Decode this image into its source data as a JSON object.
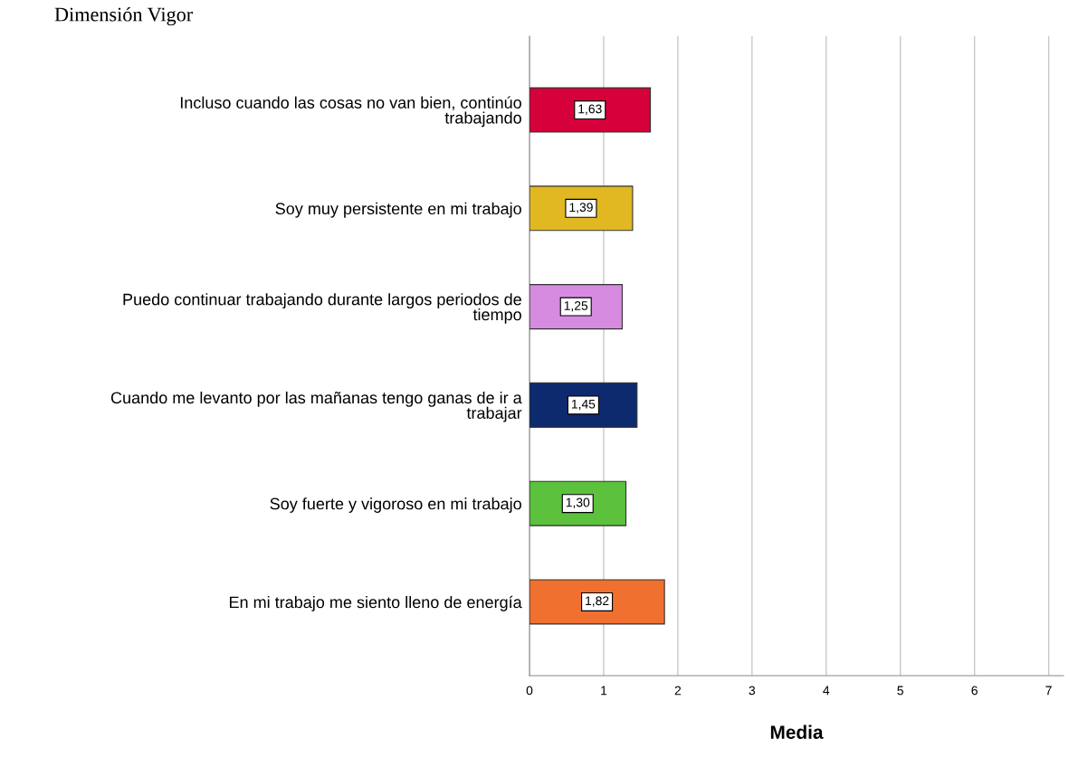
{
  "chart_data": {
    "type": "bar",
    "orientation": "horizontal",
    "title": "Dimensión Vigor",
    "xlabel": "Media",
    "categories": [
      "Incluso cuando las cosas no van bien, continúo trabajando",
      "Soy muy persistente en mi trabajo",
      "Puedo continuar trabajando durante largos periodos de tiempo",
      "Cuando me levanto por las mañanas tengo ganas de ir a trabajar",
      "Soy fuerte y vigoroso en mi trabajo",
      "En mi trabajo me siento lleno de energía"
    ],
    "values": [
      1.63,
      1.39,
      1.25,
      1.45,
      1.3,
      1.82
    ],
    "value_labels": [
      "1,63",
      "1,39",
      "1,25",
      "1,45",
      "1,30",
      "1,82"
    ],
    "colors": [
      "#d6003a",
      "#e1b822",
      "#d68be0",
      "#0e2a6e",
      "#5cc13c",
      "#f07030"
    ],
    "xlim": [
      0,
      7.2
    ],
    "xticks": [
      0,
      1,
      2,
      3,
      4,
      5,
      6,
      7
    ],
    "grid": "x"
  }
}
